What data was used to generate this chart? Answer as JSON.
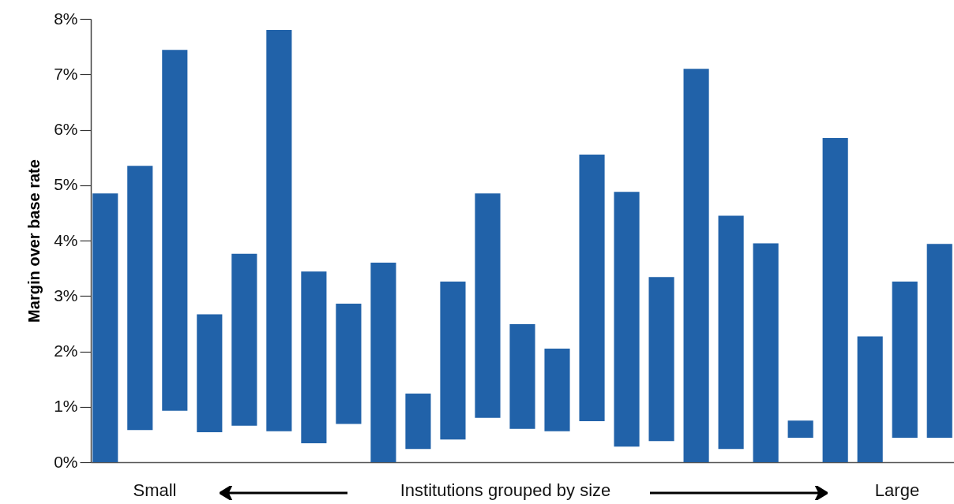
{
  "chart_data": {
    "type": "bar",
    "ylabel": "Margin over base rate",
    "xlabel": "Institutions grouped by size",
    "annotations": [
      "Small",
      "Large"
    ],
    "categories": [
      null,
      null,
      null,
      null,
      null,
      null,
      null,
      null,
      null,
      null,
      null,
      null,
      null,
      null,
      null,
      null,
      null,
      null,
      null,
      null,
      null,
      null,
      null,
      null,
      null
    ],
    "base": [
      0,
      0.58,
      0.93,
      0.54,
      0.66,
      0.56,
      0.34,
      0.69,
      0,
      0.24,
      0.41,
      0.8,
      0.6,
      0.56,
      0.74,
      0.28,
      0.38,
      0,
      0.24,
      0,
      0.44,
      0,
      0,
      0.44,
      0.44
    ],
    "values": [
      4.85,
      4.77,
      6.51,
      2.13,
      3.1,
      7.24,
      3.1,
      2.17,
      3.6,
      1,
      2.85,
      4.05,
      1.89,
      1.49,
      4.81,
      4.6,
      2.96,
      7.1,
      4.21,
      3.95,
      0.31,
      5.85,
      2.27,
      2.82,
      3.5
    ],
    "color": "#2162a9",
    "ylim": [
      0,
      8
    ],
    "yticks": [
      {
        "value": 0,
        "label": "0%"
      },
      {
        "value": 1,
        "label": "1%"
      },
      {
        "value": 2,
        "label": "2%"
      },
      {
        "value": 3,
        "label": "3%"
      },
      {
        "value": 4,
        "label": "4%"
      },
      {
        "value": 5,
        "label": "5%"
      },
      {
        "value": 6,
        "label": "6%"
      },
      {
        "value": 7,
        "label": "7%"
      },
      {
        "value": 8,
        "label": "8%"
      }
    ],
    "grid": false,
    "tick_labels": "y"
  }
}
